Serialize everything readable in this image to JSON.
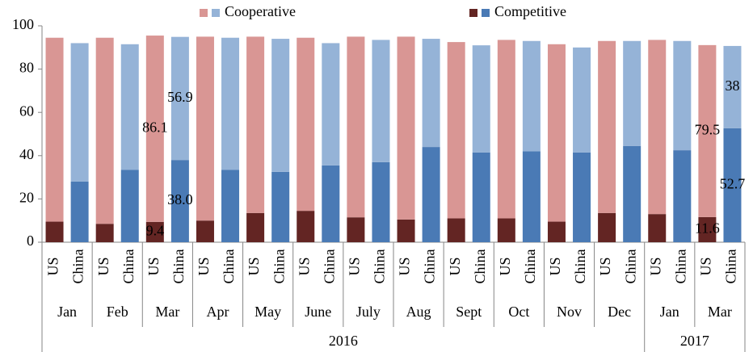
{
  "chart_data": {
    "type": "stacked_bar",
    "categories": [
      "US",
      "China",
      "US",
      "China",
      "US",
      "China",
      "US",
      "China",
      "US",
      "China",
      "US",
      "China",
      "US",
      "China",
      "US",
      "China",
      "US",
      "China",
      "US",
      "China",
      "US",
      "China",
      "US",
      "China",
      "US",
      "China",
      "US",
      "China"
    ],
    "x_groups": [
      {
        "label": "2016",
        "months": [
          "Jan",
          "Feb",
          "Mar",
          "Apr",
          "May",
          "June",
          "July",
          "Aug",
          "Sept",
          "Oct",
          "Nov",
          "Dec"
        ]
      },
      {
        "label": "2017",
        "months": [
          "Jan",
          "Mar"
        ]
      }
    ],
    "series": [
      {
        "name": "Competitive",
        "colors": [
          "#632523",
          "#4a7ab5"
        ],
        "values": [
          9.5,
          28,
          8.5,
          33.5,
          9.4,
          38.0,
          10,
          33.5,
          13.5,
          32.5,
          14.5,
          35.5,
          11.5,
          37,
          10.5,
          44,
          11,
          41.5,
          11,
          42,
          9.5,
          41.5,
          13.5,
          44.5,
          13,
          42.5,
          11.6,
          52.7
        ],
        "value_labels": [
          null,
          null,
          null,
          null,
          "9.4",
          "38.0",
          null,
          null,
          null,
          null,
          null,
          null,
          null,
          null,
          null,
          null,
          null,
          null,
          null,
          null,
          null,
          null,
          null,
          null,
          null,
          null,
          "11.6",
          "52.7"
        ]
      },
      {
        "name": "Cooperative",
        "colors": [
          "#d99694",
          "#95b3d7"
        ],
        "values": [
          85,
          64,
          86,
          58,
          86.1,
          56.9,
          85,
          61,
          81.5,
          61.5,
          80,
          56.5,
          83.5,
          56.5,
          84.5,
          50,
          81.5,
          49.5,
          82.5,
          51,
          82,
          48.5,
          79.5,
          48.5,
          80.5,
          50.5,
          79.5,
          38
        ],
        "value_labels": [
          null,
          null,
          null,
          null,
          "86.1",
          "56.9",
          null,
          null,
          null,
          null,
          null,
          null,
          null,
          null,
          null,
          null,
          null,
          null,
          null,
          null,
          null,
          null,
          null,
          null,
          null,
          null,
          "79.5",
          "38"
        ]
      }
    ],
    "ylim": [
      0,
      100
    ],
    "yticks": [
      0,
      20,
      40,
      60,
      80,
      100
    ],
    "grid": false
  }
}
